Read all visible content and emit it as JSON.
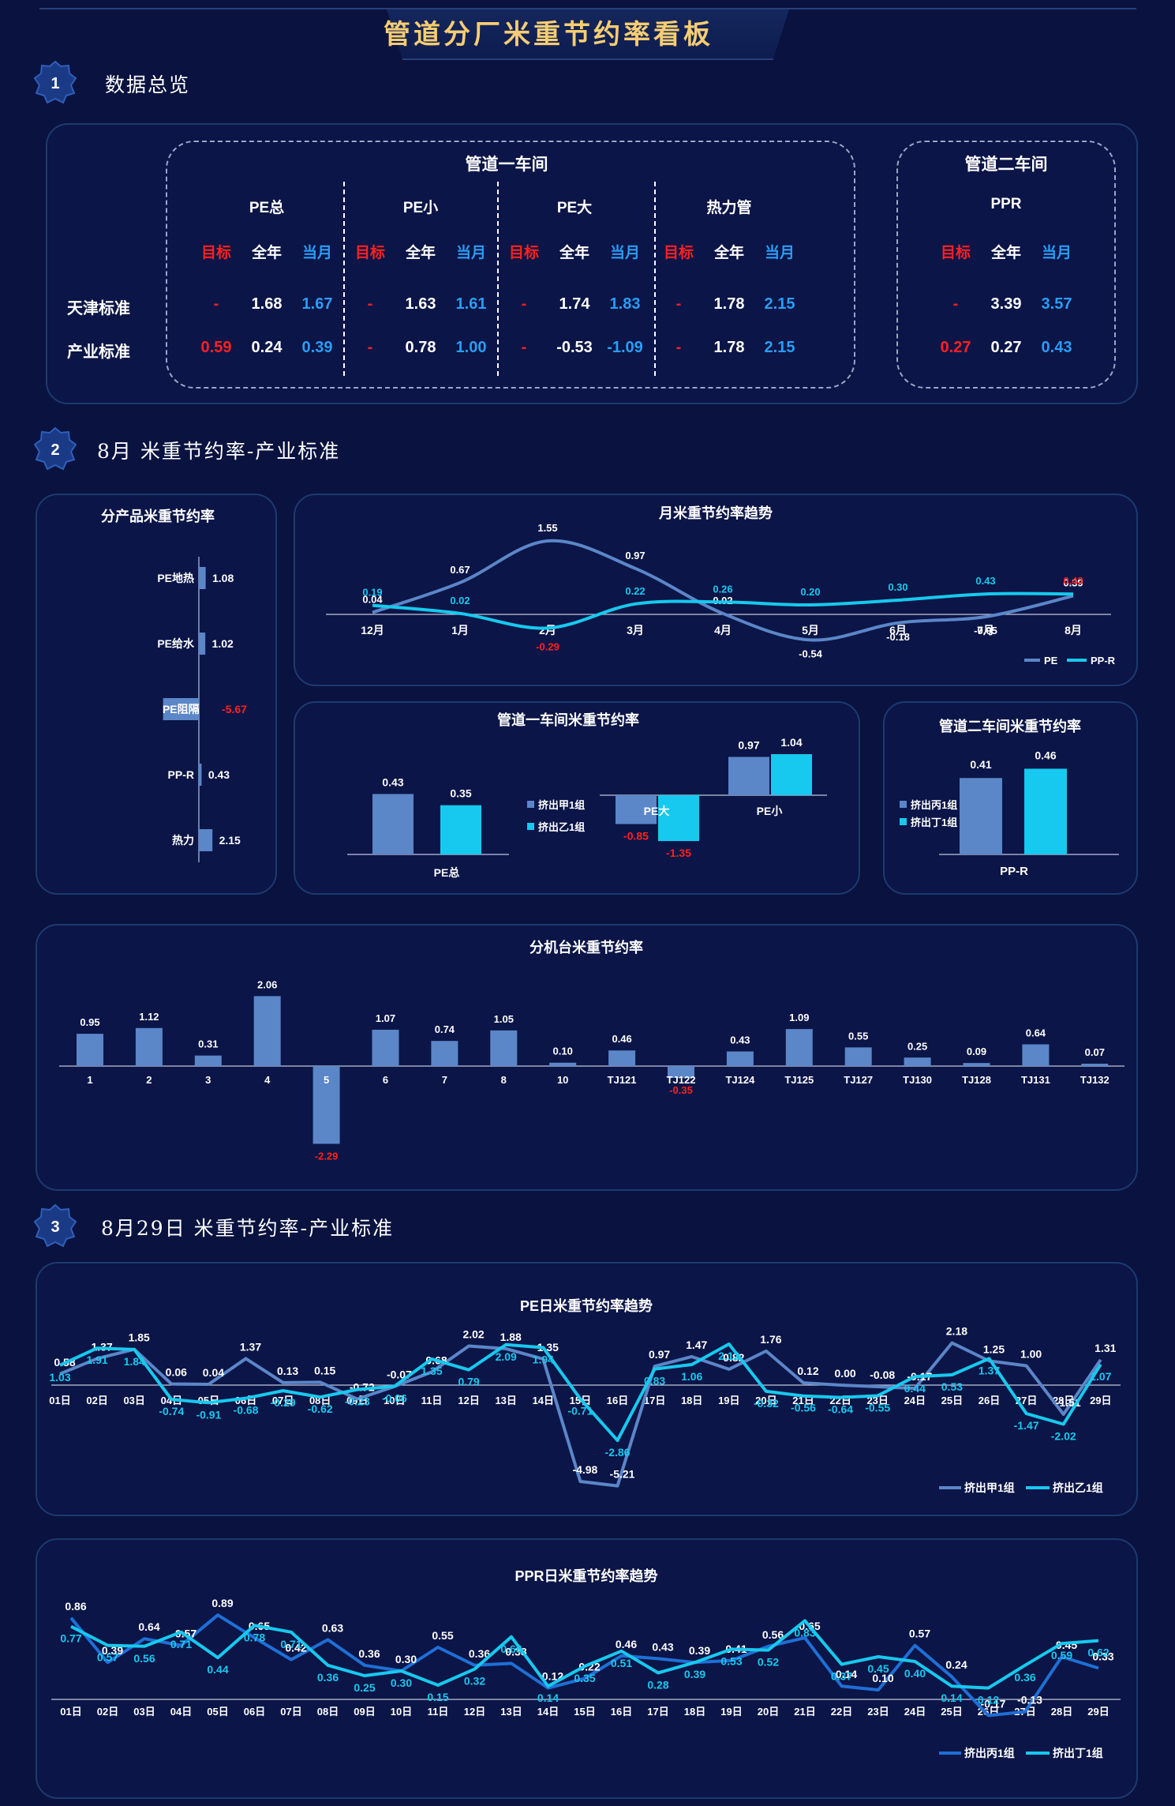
{
  "header": {
    "title": "管道分厂米重节约率看板"
  },
  "sections": [
    {
      "num": "1",
      "title": "数据总览"
    },
    {
      "num": "2",
      "title": "8月 米重节约率-产业标准"
    },
    {
      "num": "3",
      "title": "8月29日 米重节约率-产业标准"
    }
  ],
  "overview": {
    "group1_title": "管道一车间",
    "group2_title": "管道二车间",
    "products": [
      "PE总",
      "PE小",
      "PE大",
      "热力管",
      "PPR"
    ],
    "col_labels": {
      "target": "目标",
      "year": "全年",
      "month": "当月"
    },
    "row_labels": [
      "天津标准",
      "产业标准"
    ],
    "rows": [
      [
        [
          "-",
          "1.68",
          "1.67"
        ],
        [
          "-",
          "1.63",
          "1.61"
        ],
        [
          "-",
          "1.74",
          "1.83"
        ],
        [
          "-",
          "1.78",
          "2.15"
        ],
        [
          "-",
          "3.39",
          "3.57"
        ]
      ],
      [
        [
          "0.59",
          "0.24",
          "0.39"
        ],
        [
          "-",
          "0.78",
          "1.00"
        ],
        [
          "-",
          "-0.53",
          "-1.09"
        ],
        [
          "-",
          "1.78",
          "2.15"
        ],
        [
          "0.27",
          "0.27",
          "0.43"
        ]
      ]
    ]
  },
  "colors": {
    "pe": "#5b86c8",
    "ppr": "#17c9ee",
    "accent": "#f7cd73",
    "negative": "#ff2020",
    "blue_text": "#2a9df4"
  },
  "chart_data": [
    {
      "id": "product",
      "type": "bar",
      "title": "分产品米重节约率",
      "categories": [
        "PE地热",
        "PE给水",
        "PE阻隔",
        "PP-R",
        "热力"
      ],
      "values": [
        1.08,
        1.02,
        -5.67,
        0.43,
        2.15
      ],
      "value_labels": [
        "1.08",
        "1.02",
        "-5.67",
        "0.43",
        "2.15"
      ]
    },
    {
      "id": "monthly",
      "type": "line",
      "title": "月米重节约率趋势",
      "categories": [
        "12月",
        "1月",
        "2月",
        "3月",
        "4月",
        "5月",
        "6月",
        "7月",
        "8月"
      ],
      "series": [
        {
          "name": "PE",
          "values": [
            0.04,
            0.67,
            1.55,
            0.97,
            0.02,
            -0.54,
            -0.18,
            -0.05,
            0.39
          ]
        },
        {
          "name": "PP-R",
          "values": [
            0.19,
            0.02,
            -0.29,
            0.22,
            0.26,
            0.2,
            0.3,
            0.43,
            0.43
          ]
        }
      ]
    },
    {
      "id": "workshop1",
      "type": "bar",
      "title": "管道一车间米重节约率",
      "categories": [
        "PE总",
        "PE大",
        "PE小"
      ],
      "series": [
        {
          "name": "挤出甲1组",
          "values": [
            0.43,
            -0.85,
            0.97
          ]
        },
        {
          "name": "挤出乙1组",
          "values": [
            0.35,
            -1.35,
            1.04
          ]
        }
      ]
    },
    {
      "id": "workshop2",
      "type": "bar",
      "title": "管道二车间米重节约率",
      "categories": [
        "PP-R"
      ],
      "series": [
        {
          "name": "挤出丙1组",
          "values": [
            0.41
          ]
        },
        {
          "name": "挤出丁1组",
          "values": [
            0.46
          ]
        }
      ]
    },
    {
      "id": "machine",
      "type": "bar",
      "title": "分机台米重节约率",
      "categories": [
        "1",
        "2",
        "3",
        "4",
        "5",
        "6",
        "7",
        "8",
        "10",
        "TJ121",
        "TJ122",
        "TJ124",
        "TJ125",
        "TJ127",
        "TJ130",
        "TJ128",
        "TJ131",
        "TJ132"
      ],
      "values": [
        0.95,
        1.12,
        0.31,
        2.06,
        -2.29,
        1.07,
        0.74,
        1.05,
        0.1,
        0.46,
        -0.35,
        0.43,
        1.09,
        0.55,
        0.25,
        0.09,
        0.64,
        0.07
      ]
    },
    {
      "id": "pe_daily",
      "type": "line",
      "title": "PE日米重节约率趋势",
      "categories": [
        "01日",
        "02日",
        "03日",
        "04日",
        "05日",
        "06日",
        "07日",
        "08日",
        "09日",
        "10日",
        "11日",
        "12日",
        "13日",
        "14日",
        "15日",
        "16日",
        "17日",
        "18日",
        "19日",
        "20日",
        "21日",
        "22日",
        "23日",
        "24日",
        "25日",
        "26日",
        "27日",
        "28日",
        "29日"
      ],
      "series": [
        {
          "name": "挤出甲1组",
          "values": [
            0.58,
            1.37,
            1.85,
            0.06,
            0.04,
            1.37,
            0.13,
            0.15,
            -0.72,
            -0.07,
            0.68,
            2.02,
            1.88,
            1.35,
            -4.98,
            -5.21,
            0.97,
            1.47,
            0.82,
            1.76,
            0.12,
            0.0,
            -0.08,
            -0.17,
            2.18,
            1.25,
            1.0,
            -1.51,
            1.31
          ]
        },
        {
          "name": "挤出乙1组",
          "values": [
            1.03,
            1.91,
            1.84,
            -0.74,
            -0.91,
            -0.68,
            -0.29,
            -0.62,
            -0.23,
            -0.06,
            1.35,
            0.79,
            2.09,
            1.94,
            -0.71,
            -2.86,
            0.83,
            1.06,
            2.12,
            -0.32,
            -0.56,
            -0.64,
            -0.55,
            0.44,
            0.53,
            1.37,
            -1.47,
            -2.02,
            1.07
          ]
        }
      ]
    },
    {
      "id": "ppr_daily",
      "type": "line",
      "title": "PPR日米重节约率趋势",
      "categories": [
        "01日",
        "02日",
        "03日",
        "04日",
        "05日",
        "06日",
        "07日",
        "08日",
        "09日",
        "10日",
        "11日",
        "12日",
        "13日",
        "14日",
        "15日",
        "16日",
        "17日",
        "18日",
        "19日",
        "20日",
        "21日",
        "22日",
        "23日",
        "24日",
        "25日",
        "26日",
        "27日",
        "28日",
        "29日"
      ],
      "series": [
        {
          "name": "挤出丙1组",
          "values": [
            0.86,
            0.39,
            0.64,
            0.57,
            0.89,
            0.65,
            0.42,
            0.63,
            0.36,
            0.3,
            0.55,
            0.36,
            0.38,
            0.12,
            0.22,
            0.46,
            0.43,
            0.39,
            0.41,
            0.56,
            0.65,
            0.14,
            0.1,
            0.57,
            0.24,
            -0.17,
            -0.13,
            0.45,
            0.33
          ]
        },
        {
          "name": "挤出丁1组",
          "values": [
            0.77,
            0.57,
            0.56,
            0.71,
            0.44,
            0.78,
            0.71,
            0.36,
            0.25,
            0.3,
            0.15,
            0.32,
            0.66,
            0.14,
            0.35,
            0.51,
            0.28,
            0.39,
            0.53,
            0.52,
            0.83,
            0.37,
            0.45,
            0.4,
            0.14,
            0.12,
            0.36,
            0.59,
            0.62
          ]
        }
      ]
    }
  ]
}
